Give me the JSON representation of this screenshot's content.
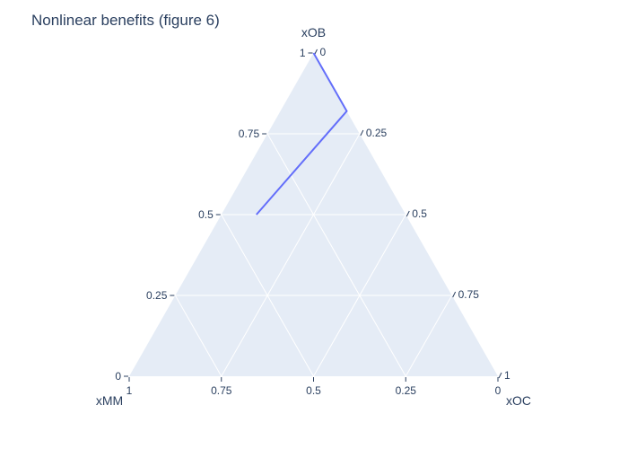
{
  "chart_data": {
    "type": "ternary-line",
    "title": "Nonlinear benefits (figure 6)",
    "axes": {
      "a": {
        "title": "xOB",
        "corner": "top"
      },
      "b": {
        "title": "xMM",
        "corner": "bottom-left"
      },
      "c": {
        "title": "xOC",
        "corner": "bottom-right"
      }
    },
    "tick_values": [
      0,
      0.25,
      0.5,
      0.75,
      1
    ],
    "grid": true,
    "background_color": "#e5ecf6",
    "grid_color": "#ffffff",
    "series": [
      {
        "color": "#636efa",
        "points": [
          {
            "xOB": 1.0,
            "xMM": 0.0,
            "xOC": 0.0
          },
          {
            "xOB": 0.91,
            "xMM": 0.0,
            "xOC": 0.09
          },
          {
            "xOB": 0.82,
            "xMM": 0.0,
            "xOC": 0.18
          },
          {
            "xOB": 0.5,
            "xMM": 0.405,
            "xOC": 0.095
          }
        ]
      }
    ]
  }
}
